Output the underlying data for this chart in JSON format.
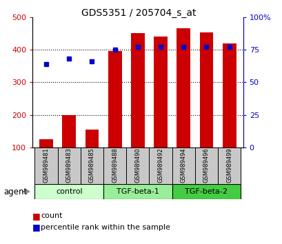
{
  "title": "GDS5351 / 205704_s_at",
  "samples": [
    "GSM989481",
    "GSM989483",
    "GSM989485",
    "GSM989488",
    "GSM989490",
    "GSM989492",
    "GSM989494",
    "GSM989496",
    "GSM989499"
  ],
  "counts": [
    125,
    200,
    155,
    395,
    450,
    440,
    465,
    453,
    420
  ],
  "percentiles": [
    64,
    68,
    66,
    75,
    77,
    77,
    77,
    77,
    77
  ],
  "groups": [
    {
      "label": "control",
      "start": 0,
      "end": 3,
      "color": "#ccffcc"
    },
    {
      "label": "TGF-beta-1",
      "start": 3,
      "end": 6,
      "color": "#99ee99"
    },
    {
      "label": "TGF-beta-2",
      "start": 6,
      "end": 9,
      "color": "#44cc44"
    }
  ],
  "ylim_left": [
    100,
    500
  ],
  "ylim_right": [
    0,
    100
  ],
  "yticks_left": [
    100,
    200,
    300,
    400,
    500
  ],
  "yticks_right": [
    0,
    25,
    50,
    75,
    100
  ],
  "yticklabels_right": [
    "0",
    "25",
    "50",
    "75",
    "100%"
  ],
  "bar_color": "#cc0000",
  "dot_color": "#0000cc",
  "left_tick_color": "#cc0000",
  "right_tick_color": "#0000cc",
  "agent_label": "agent",
  "legend_count_label": "count",
  "legend_pct_label": "percentile rank within the sample",
  "bar_width": 0.6,
  "sample_box_color": "#c8c8c8",
  "figsize": [
    4.1,
    3.54
  ],
  "dpi": 100
}
